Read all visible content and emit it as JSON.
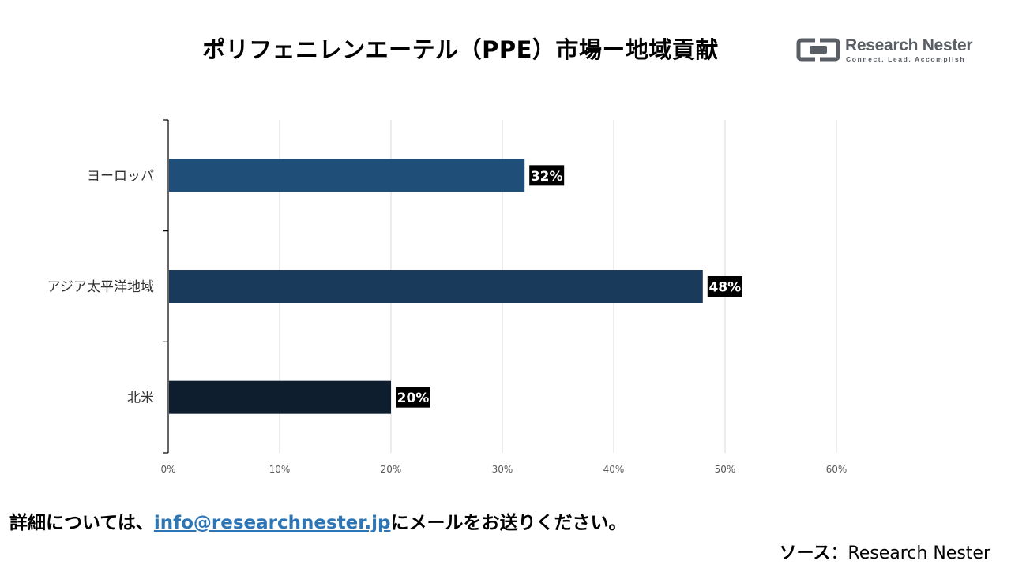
{
  "header": {
    "title": "ポリフェニレンエーテル（PPE）市場ー地域貢献",
    "logo_name": "Research Nester",
    "logo_tagline": "Connect. Lead. Accomplish"
  },
  "footer": {
    "note_prefix": "詳細については、",
    "email": "info@researchnester.jp",
    "note_suffix": "にメールをお送りください。",
    "source_label": "ソース",
    "source_value": "：Research Nester"
  },
  "chart_data": {
    "type": "bar",
    "orientation": "horizontal",
    "categories": [
      "ヨーロッパ",
      "アジア太平洋地域",
      "北米"
    ],
    "values": [
      32,
      48,
      20
    ],
    "data_labels": [
      "32%",
      "48%",
      "20%"
    ],
    "colors": [
      "#1f4e79",
      "#1a3a5c",
      "#0f1e2e"
    ],
    "xlim": [
      0,
      60
    ],
    "xticks": [
      0,
      10,
      20,
      30,
      40,
      50,
      60
    ],
    "xtick_labels": [
      "0%",
      "10%",
      "20%",
      "30%",
      "40%",
      "50%",
      "60%"
    ],
    "grid": "vertical",
    "legend": "none"
  }
}
